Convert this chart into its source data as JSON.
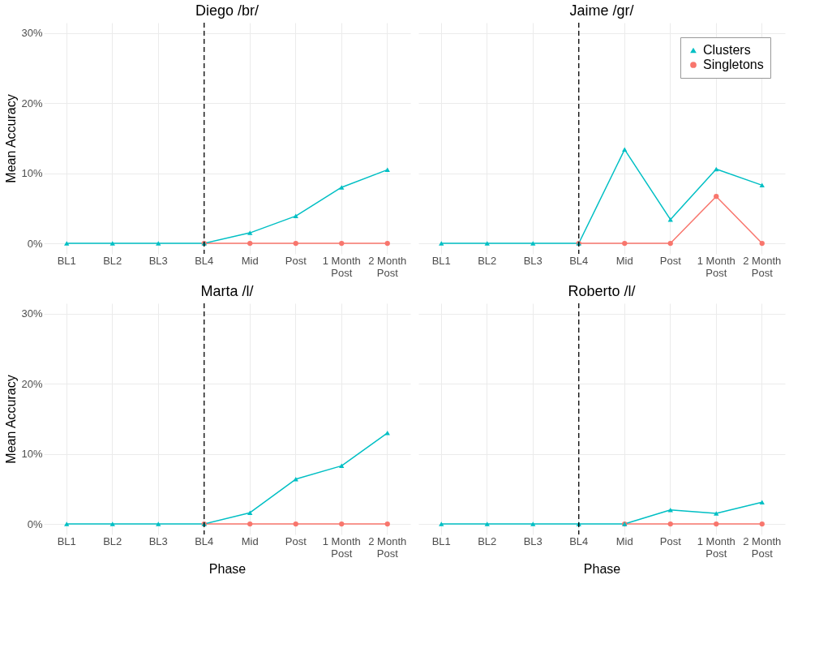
{
  "chart_data": [
    {
      "type": "line",
      "title": "Diego /br/",
      "ylabel": "Mean Accuracy",
      "categories": [
        "BL1",
        "BL2",
        "BL3",
        "BL4",
        "Mid",
        "Post",
        "1 Month Post",
        "2 Month Post"
      ],
      "series": [
        {
          "color": "#00bfc4",
          "marker": "triangle",
          "values": [
            0,
            0,
            0,
            0,
            1.5,
            3.9,
            8.0,
            10.5
          ]
        },
        {
          "color": "#f8766d",
          "marker": "circle",
          "values": [
            null,
            null,
            null,
            0,
            0,
            0,
            0,
            0
          ]
        }
      ],
      "ylim": [
        -1.5,
        31.5
      ],
      "yticks": [
        {
          "value": 0,
          "label": "0%"
        },
        {
          "value": 10,
          "label": "10%"
        },
        {
          "value": 20,
          "label": "20%"
        },
        {
          "value": 30,
          "label": "30%"
        }
      ],
      "ref_lines": [
        {
          "axis": "x",
          "value": "BL4",
          "color": "#000000",
          "line_style": "dashed"
        }
      ],
      "grid": true
    },
    {
      "type": "line",
      "title": "Jaime /gr/",
      "categories": [
        "BL1",
        "BL2",
        "BL3",
        "BL4",
        "Mid",
        "Post",
        "1 Month Post",
        "2 Month Post"
      ],
      "series": [
        {
          "name": "Clusters",
          "color": "#00bfc4",
          "marker": "triangle",
          "values": [
            0,
            0,
            0,
            0,
            13.4,
            3.4,
            10.6,
            8.3
          ]
        },
        {
          "name": "Singletons",
          "color": "#f8766d",
          "marker": "circle",
          "values": [
            null,
            null,
            null,
            0,
            0,
            0,
            6.7,
            0
          ]
        }
      ],
      "ylim": [
        -1.5,
        31.5
      ],
      "yticks": [
        0,
        10,
        20,
        30
      ],
      "ref_lines": [
        {
          "axis": "x",
          "value": "BL4",
          "color": "#000000",
          "line_style": "dashed"
        }
      ],
      "grid": true,
      "legend": "top right",
      "tick_labels": "x"
    },
    {
      "type": "line",
      "title": "Marta /l/",
      "xlabel": "Phase",
      "ylabel": "Mean Accuracy",
      "categories": [
        "BL1",
        "BL2",
        "BL3",
        "BL4",
        "Mid",
        "Post",
        "1 Month Post",
        "2 Month Post"
      ],
      "series": [
        {
          "color": "#00bfc4",
          "marker": "triangle",
          "values": [
            0,
            0,
            0,
            0,
            1.6,
            6.4,
            8.3,
            13.0
          ]
        },
        {
          "color": "#f8766d",
          "marker": "circle",
          "values": [
            null,
            null,
            null,
            0,
            0,
            0,
            0,
            0
          ]
        }
      ],
      "ylim": [
        -1.5,
        31.5
      ],
      "yticks": [
        {
          "value": 0,
          "label": "0%"
        },
        {
          "value": 10,
          "label": "10%"
        },
        {
          "value": 20,
          "label": "20%"
        },
        {
          "value": 30,
          "label": "30%"
        }
      ],
      "ref_lines": [
        {
          "axis": "x",
          "value": "BL4",
          "color": "#000000",
          "line_style": "dashed"
        }
      ],
      "grid": true
    },
    {
      "type": "line",
      "title": "Roberto /l/",
      "xlabel": "Phase",
      "categories": [
        "BL1",
        "BL2",
        "BL3",
        "BL4",
        "Mid",
        "Post",
        "1 Month Post",
        "2 Month Post"
      ],
      "series": [
        {
          "color": "#00bfc4",
          "marker": "triangle",
          "values": [
            0,
            0,
            0,
            0,
            0,
            2.0,
            1.5,
            3.1
          ]
        },
        {
          "color": "#f8766d",
          "marker": "circle",
          "values": [
            null,
            null,
            null,
            null,
            0,
            0,
            0,
            0
          ]
        }
      ],
      "ylim": [
        -1.5,
        31.5
      ],
      "yticks": [
        0,
        10,
        20,
        30
      ],
      "ref_lines": [
        {
          "axis": "x",
          "value": "BL4",
          "color": "#000000",
          "line_style": "dashed"
        }
      ],
      "grid": true,
      "tick_labels": "x"
    }
  ]
}
